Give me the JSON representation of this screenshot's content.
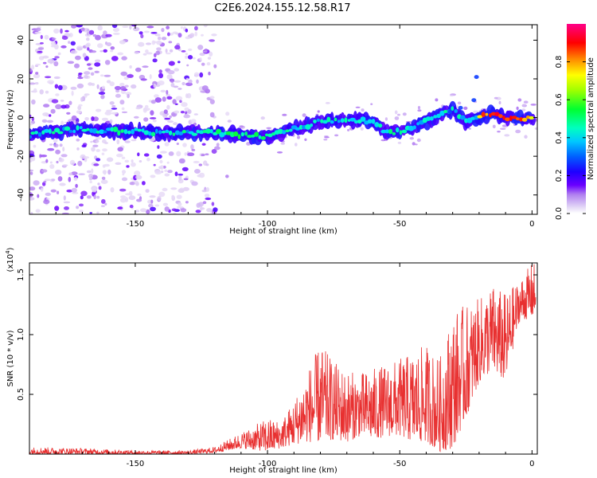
{
  "title": "C2E6.2024.155.12.58.R17",
  "chart_data": [
    {
      "type": "heatmap",
      "xlabel": "Height of straight line (km)",
      "ylabel": "Frequency (Hz)",
      "xlim": [
        -190,
        2
      ],
      "ylim": [
        -50,
        48
      ],
      "xticks": [
        -150,
        -100,
        -50,
        0
      ],
      "yticks": [
        40,
        20,
        0,
        -20,
        -40
      ],
      "grid": false,
      "colorbar": {
        "label": "Normalized spectral amplitude",
        "range": [
          0.0,
          1.0
        ],
        "ticks": [
          0.0,
          0.2,
          0.4,
          0.6,
          0.8
        ],
        "colormap": [
          "#ffffff",
          "#d8c8f4",
          "#8a2be2",
          "#4b00ff",
          "#0000ff",
          "#00bfff",
          "#00ffcc",
          "#00ff00",
          "#ffff00",
          "#ff8000",
          "#ff0000",
          "#ff0090"
        ]
      },
      "ridge": {
        "description_free": true,
        "x": [
          -190,
          -180,
          -170,
          -160,
          -150,
          -140,
          -130,
          -120,
          -110,
          -100,
          -90,
          -80,
          -70,
          -60,
          -55,
          -50,
          -45,
          -40,
          -35,
          -30,
          -25,
          -20,
          -15,
          -10,
          -5,
          0
        ],
        "y": [
          -9,
          -7,
          -6,
          -7,
          -7,
          -8,
          -8,
          -8,
          -9,
          -10,
          -6,
          -2,
          -1,
          -2,
          -8,
          -7,
          -5,
          -2,
          1,
          4,
          -2,
          0,
          2,
          0,
          0,
          -1
        ]
      },
      "noise_region_x": [
        -190,
        -115
      ]
    },
    {
      "type": "line",
      "xlabel": "Height of straight line (km)",
      "ylabel": "SNR (10 * v/v)",
      "multiplier": "(x10",
      "multiplier_exp": "4",
      "multiplier_close": ")",
      "xlim": [
        -190,
        2
      ],
      "ylim": [
        0,
        1.6
      ],
      "xticks": [
        -150,
        -100,
        -50,
        0
      ],
      "yticks": [
        0.5,
        1.0,
        1.5
      ],
      "ytick_labels": [
        "0.5",
        "1.0",
        "1.5"
      ],
      "color": "#e83030",
      "envelope": {
        "x": [
          -190,
          -170,
          -150,
          -130,
          -120,
          -110,
          -100,
          -95,
          -90,
          -85,
          -80,
          -75,
          -70,
          -65,
          -60,
          -55,
          -50,
          -45,
          -40,
          -35,
          -30,
          -25,
          -20,
          -15,
          -10,
          -5,
          0
        ],
        "peak": [
          0.06,
          0.05,
          0.03,
          0.03,
          0.06,
          0.18,
          0.3,
          0.28,
          0.45,
          0.7,
          0.92,
          0.78,
          0.7,
          0.68,
          0.72,
          0.75,
          0.8,
          0.85,
          0.92,
          0.8,
          1.2,
          1.25,
          1.3,
          1.42,
          1.35,
          1.45,
          1.6
        ],
        "base": [
          0.0,
          0.0,
          0.0,
          0.0,
          0.01,
          0.05,
          0.02,
          0.05,
          0.08,
          0.1,
          0.1,
          0.12,
          0.1,
          0.15,
          0.12,
          0.15,
          0.15,
          0.1,
          0.1,
          0.02,
          0.05,
          0.3,
          0.6,
          0.7,
          0.6,
          1.1,
          1.15
        ]
      }
    }
  ]
}
